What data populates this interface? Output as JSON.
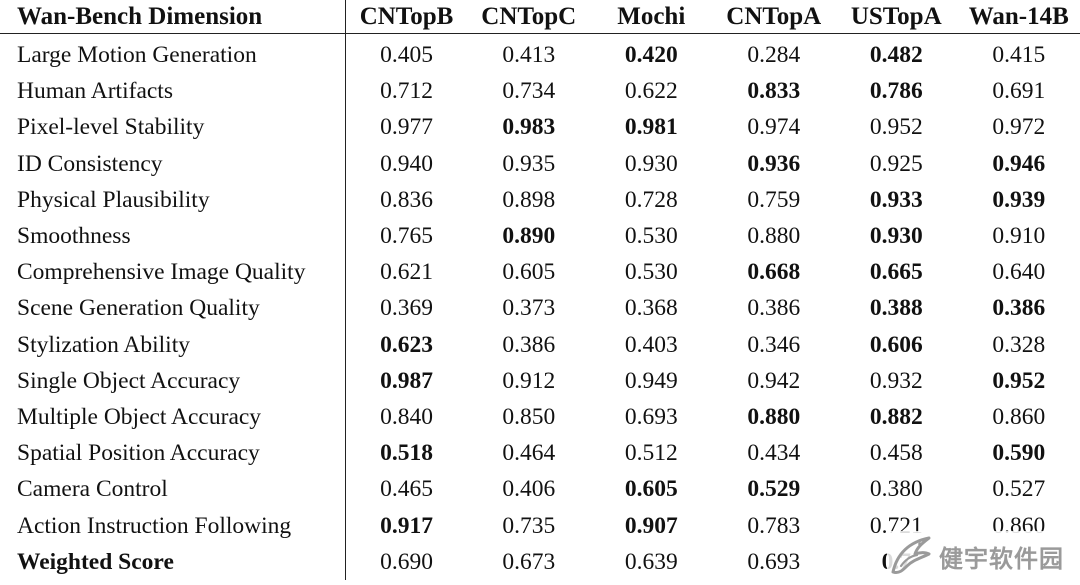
{
  "table": {
    "headers": [
      "Wan-Bench Dimension",
      "CNTopB",
      "CNTopC",
      "Mochi",
      "CNTopA",
      "USTopA",
      "Wan-14B"
    ],
    "rows": [
      {
        "label": "Large Motion Generation",
        "values": [
          "0.405",
          "0.413",
          "0.420",
          "0.284",
          "0.482",
          "0.415"
        ],
        "bold": [
          false,
          false,
          true,
          false,
          true,
          false
        ]
      },
      {
        "label": "Human Artifacts",
        "values": [
          "0.712",
          "0.734",
          "0.622",
          "0.833",
          "0.786",
          "0.691"
        ],
        "bold": [
          false,
          false,
          false,
          true,
          true,
          false
        ]
      },
      {
        "label": "Pixel-level Stability",
        "values": [
          "0.977",
          "0.983",
          "0.981",
          "0.974",
          "0.952",
          "0.972"
        ],
        "bold": [
          false,
          true,
          true,
          false,
          false,
          false
        ]
      },
      {
        "label": "ID Consistency",
        "values": [
          "0.940",
          "0.935",
          "0.930",
          "0.936",
          "0.925",
          "0.946"
        ],
        "bold": [
          false,
          false,
          false,
          true,
          false,
          true
        ]
      },
      {
        "label": "Physical Plausibility",
        "values": [
          "0.836",
          "0.898",
          "0.728",
          "0.759",
          "0.933",
          "0.939"
        ],
        "bold": [
          false,
          false,
          false,
          false,
          true,
          true
        ]
      },
      {
        "label": "Smoothness",
        "values": [
          "0.765",
          "0.890",
          "0.530",
          "0.880",
          "0.930",
          "0.910"
        ],
        "bold": [
          false,
          true,
          false,
          false,
          true,
          false
        ]
      },
      {
        "label": "Comprehensive Image Quality",
        "values": [
          "0.621",
          "0.605",
          "0.530",
          "0.668",
          "0.665",
          "0.640"
        ],
        "bold": [
          false,
          false,
          false,
          true,
          true,
          false
        ]
      },
      {
        "label": "Scene Generation Quality",
        "values": [
          "0.369",
          "0.373",
          "0.368",
          "0.386",
          "0.388",
          "0.386"
        ],
        "bold": [
          false,
          false,
          false,
          false,
          true,
          true
        ]
      },
      {
        "label": "Stylization Ability",
        "values": [
          "0.623",
          "0.386",
          "0.403",
          "0.346",
          "0.606",
          "0.328"
        ],
        "bold": [
          true,
          false,
          false,
          false,
          true,
          false
        ]
      },
      {
        "label": "Single Object Accuracy",
        "values": [
          "0.987",
          "0.912",
          "0.949",
          "0.942",
          "0.932",
          "0.952"
        ],
        "bold": [
          true,
          false,
          false,
          false,
          false,
          true
        ]
      },
      {
        "label": "Multiple Object Accuracy",
        "values": [
          "0.840",
          "0.850",
          "0.693",
          "0.880",
          "0.882",
          "0.860"
        ],
        "bold": [
          false,
          false,
          false,
          true,
          true,
          false
        ]
      },
      {
        "label": "Spatial Position Accuracy",
        "values": [
          "0.518",
          "0.464",
          "0.512",
          "0.434",
          "0.458",
          "0.590"
        ],
        "bold": [
          true,
          false,
          false,
          false,
          false,
          true
        ]
      },
      {
        "label": "Camera Control",
        "values": [
          "0.465",
          "0.406",
          "0.605",
          "0.529",
          "0.380",
          "0.527"
        ],
        "bold": [
          false,
          false,
          true,
          true,
          false,
          false
        ]
      },
      {
        "label": "Action Instruction Following",
        "values": [
          "0.917",
          "0.735",
          "0.907",
          "0.783",
          "0.721",
          "0.860"
        ],
        "bold": [
          true,
          false,
          true,
          false,
          false,
          false
        ]
      },
      {
        "label": "Weighted Score",
        "label_bold": true,
        "values": [
          "0.690",
          "0.673",
          "0.639",
          "0.693",
          "0.7",
          ""
        ],
        "bold": [
          false,
          false,
          false,
          false,
          true,
          false
        ]
      }
    ]
  },
  "watermark": {
    "text": "健宇软件园",
    "logo_icon": "eagle-logo-icon",
    "color": "#9a9a9a"
  }
}
